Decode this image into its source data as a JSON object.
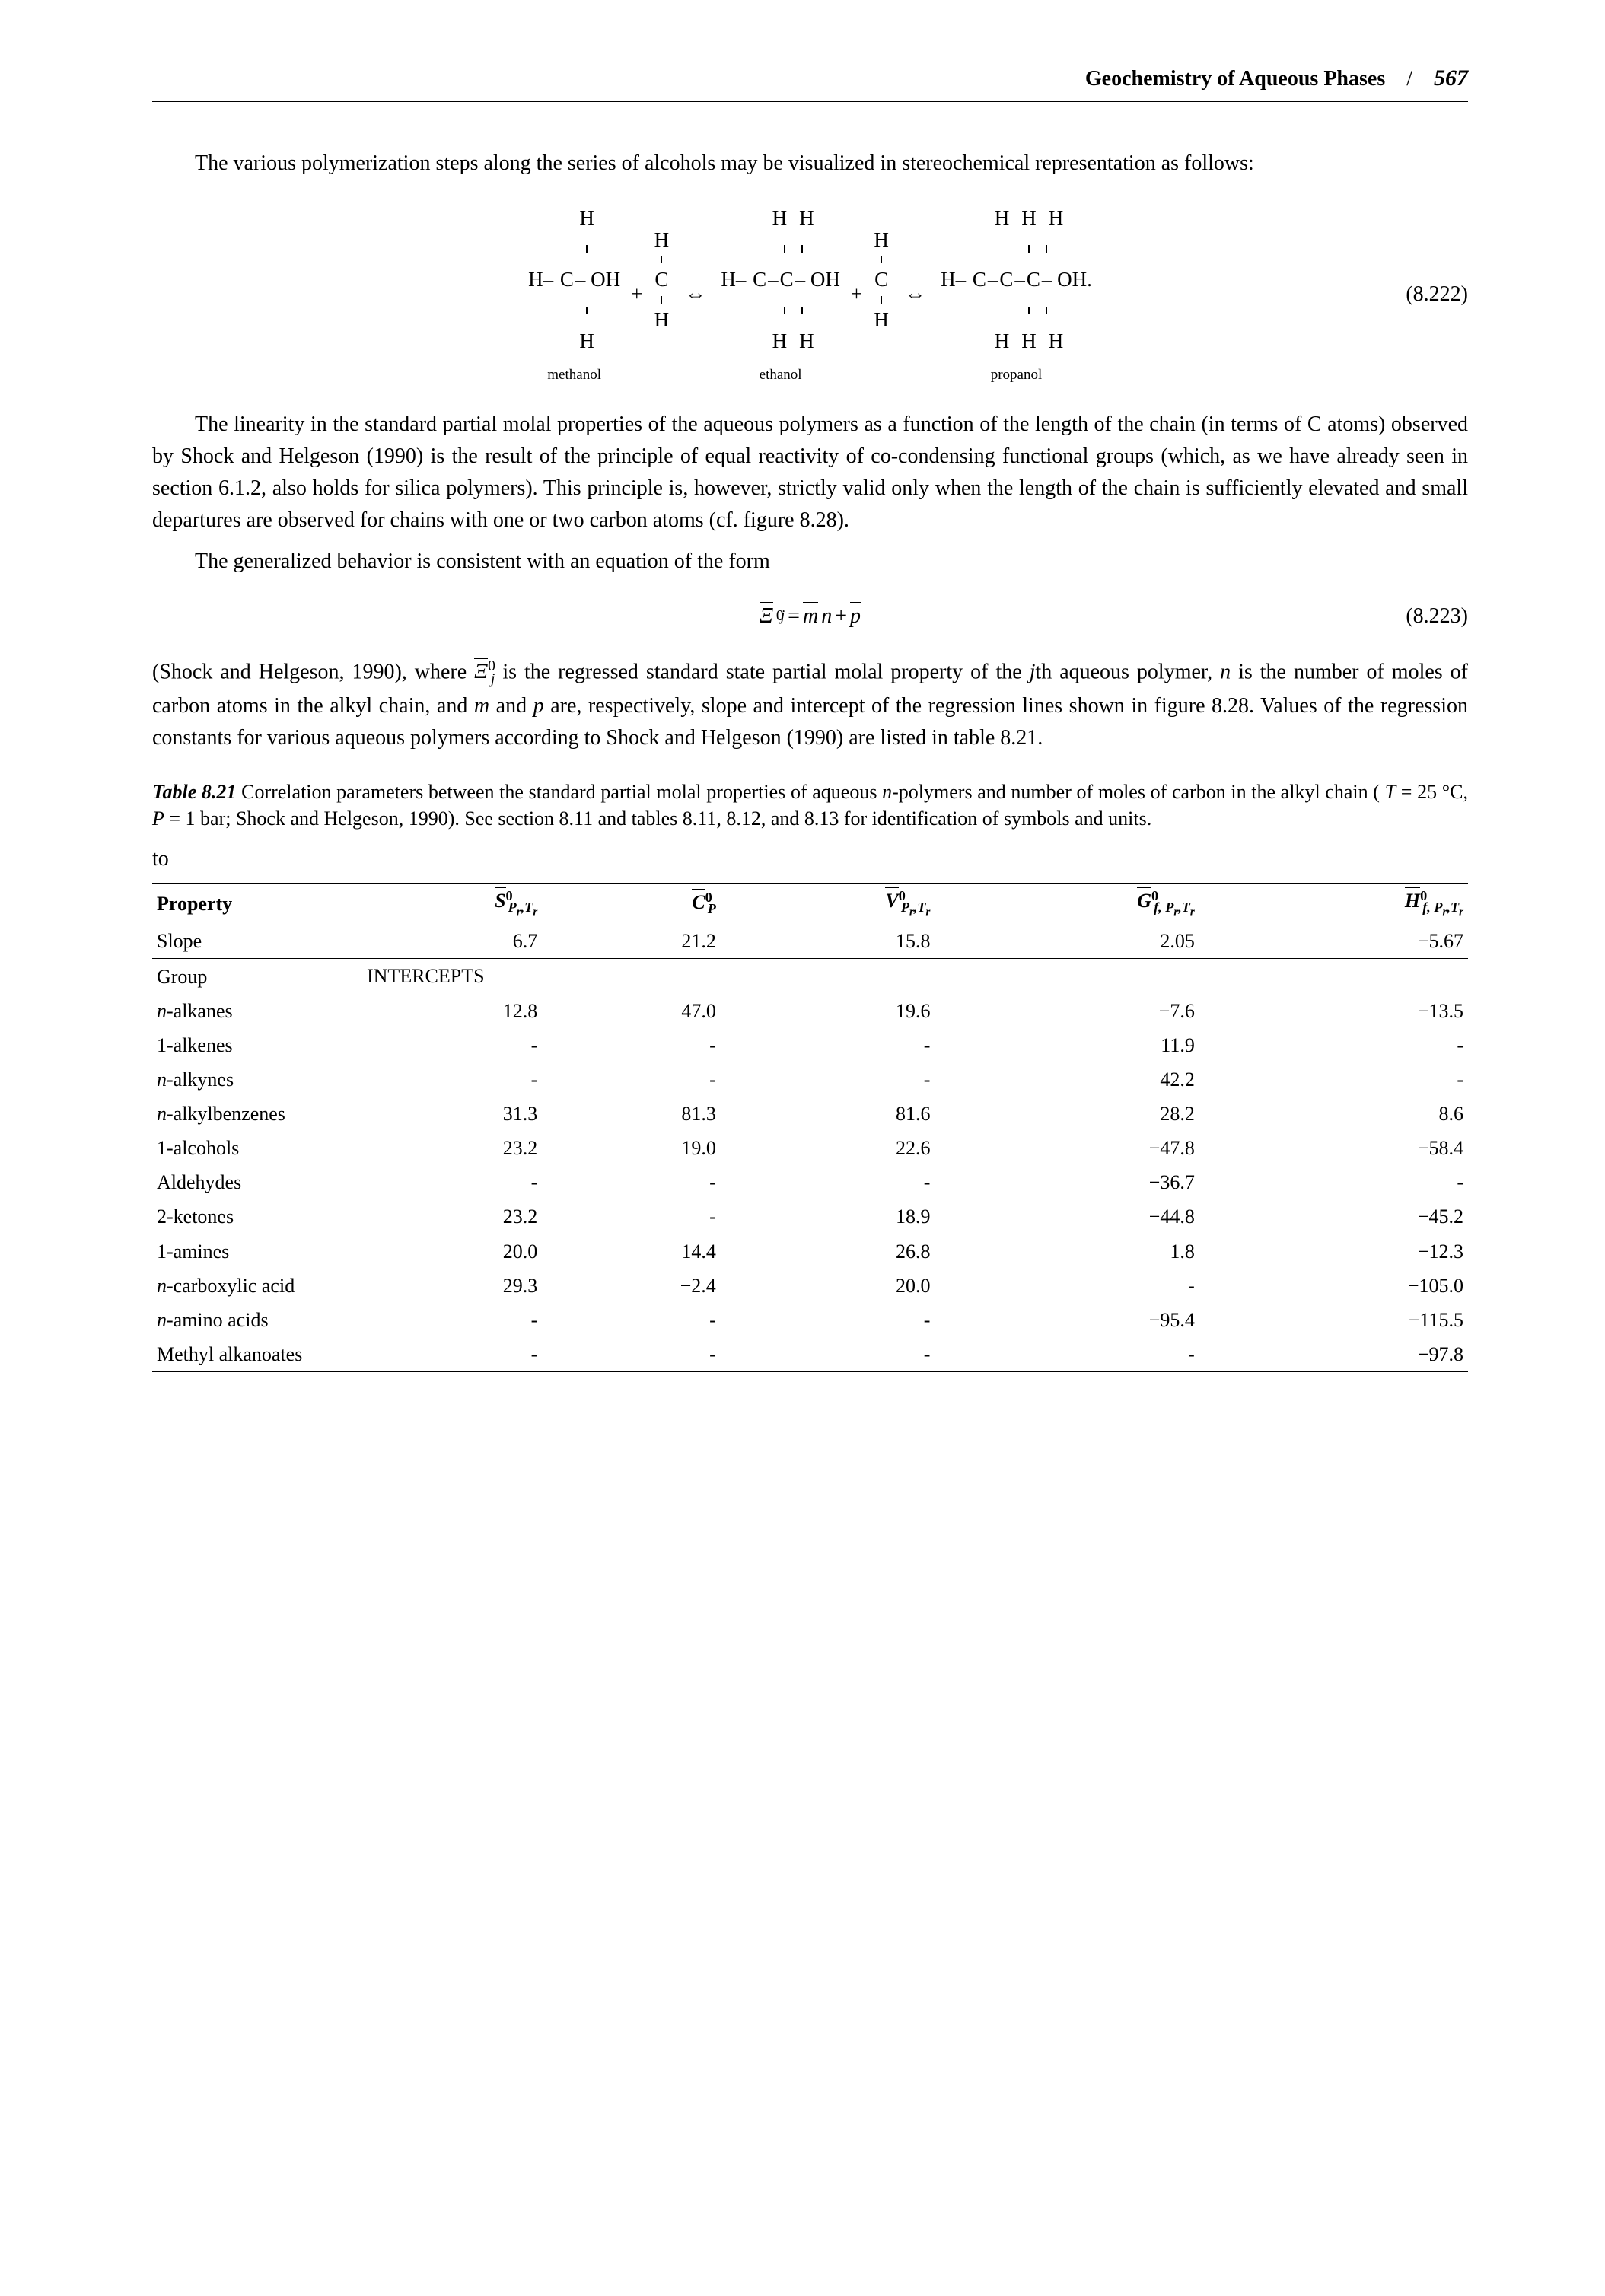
{
  "header": {
    "title": "Geochemistry of Aqueous Phases",
    "slash": "/",
    "page": "567"
  },
  "para1": "The various polymerization steps along the series of alcohols may be visualized in stereochemical representation as follows:",
  "stereo": {
    "labels": {
      "methanol": "methanol",
      "ethanol": "ethanol",
      "propanol": "propanol"
    },
    "atoms": {
      "H": "H",
      "C": "C",
      "OH": "OH"
    },
    "eq_num": "(8.222)",
    "plus": "+",
    "dash": "–",
    "arrow": "⇔",
    "dot": "."
  },
  "para2": "The linearity in the standard partial molal properties of the aqueous polymers as a function of the length of the chain (in terms of C atoms) observed by Shock and Helgeson (1990) is the result of the principle of equal reactivity of co-condensing functional groups (which, as we have already seen in section 6.1.2, also holds for silica polymers). This principle is, however, strictly valid only when the length of the chain is sufficiently elevated and small departures are observed for chains with one or two carbon atoms (cf. figure 8.28).",
  "para3": "The generalized behavior is consistent with an equation of the form",
  "eq223": {
    "lhs_sym": "Ξ",
    "lhs_sup": "0",
    "lhs_sub": "j",
    "eq": " = ",
    "m": "m",
    "n": "n",
    "plus": " + ",
    "p": "p",
    "num": "(8.223)"
  },
  "para4a": "(Shock and Helgeson, 1990), where ",
  "para4b": " is the regressed standard state partial molal property of the ",
  "para4c": "th aqueous polymer, ",
  "para4d": " is the number of moles of carbon atoms in the alkyl chain, and ",
  "para4e": " and ",
  "para4f": " are, respectively, slope and intercept of the regression lines shown in figure 8.28. Values of the regression constants for various aqueous polymers according to Shock and Helgeson (1990) are listed in table 8.21.",
  "para4_sym": {
    "Xi": "Ξ",
    "j": "j",
    "n": "n",
    "m": "m",
    "p": "p"
  },
  "caption": {
    "label": "Table 8.21",
    "text": " Correlation parameters between the standard partial molal properties of aqueous ",
    "npoly": "n",
    "text2": "-polymers and number of moles of carbon in the alkyl chain ( ",
    "cond": "T",
    "cond_eq": " = 25 °C, ",
    "cond2": "P",
    "cond2_eq": " = 1 bar; Shock and Helgeson, 1990). See section 8.11 and tables 8.11, 8.12, and 8.13 for identification of symbols and units."
  },
  "table": {
    "headers": {
      "property": "Property",
      "S": {
        "sym": "S",
        "sup": "0",
        "sub": "P",
        "sub2": ",T",
        "r": "r"
      },
      "C": {
        "sym": "C",
        "sup": "0",
        "sub": "P"
      },
      "V": {
        "sym": "V",
        "sup": "0",
        "sub": "P",
        "sub2": ",T",
        "r": "r"
      },
      "G": {
        "sym": "G",
        "sup": "0",
        "sub": "f, P",
        "sub2": ",T",
        "r": "r"
      },
      "H": {
        "sym": "H",
        "sup": "0",
        "sub": "f, P",
        "sub2": ",T",
        "r": "r"
      }
    },
    "slope_label": "Slope",
    "slope": [
      "6.7",
      "21.2",
      "15.8",
      "2.05",
      "−5.67"
    ],
    "group_label": "Group",
    "intercepts_label": "INTERCEPTS",
    "rows": [
      {
        "name_n": "n",
        "name": "-alkanes",
        "v": [
          "12.8",
          "47.0",
          "19.6",
          "−7.6",
          "−13.5"
        ]
      },
      {
        "name_n": "",
        "name": "1-alkenes",
        "v": [
          "-",
          "-",
          "-",
          "11.9",
          "-"
        ]
      },
      {
        "name_n": "n",
        "name": "-alkynes",
        "v": [
          "-",
          "-",
          "-",
          "42.2",
          "-"
        ]
      },
      {
        "name_n": "n",
        "name": "-alkylbenzenes",
        "v": [
          "31.3",
          "81.3",
          "81.6",
          "28.2",
          "8.6"
        ]
      },
      {
        "name_n": "",
        "name": "1-alcohols",
        "v": [
          "23.2",
          "19.0",
          "22.6",
          "−47.8",
          "−58.4"
        ]
      },
      {
        "name_n": "",
        "name": "Aldehydes",
        "v": [
          "-",
          "-",
          "-",
          "−36.7",
          "-"
        ]
      },
      {
        "name_n": "",
        "name": "2-ketones",
        "v": [
          "23.2",
          "-",
          "18.9",
          "−44.8",
          "−45.2"
        ]
      }
    ],
    "rows2": [
      {
        "name_n": "",
        "name": "1-amines",
        "v": [
          "20.0",
          "14.4",
          "26.8",
          "1.8",
          "−12.3"
        ]
      },
      {
        "name_n": "n",
        "name": "-carboxylic acid",
        "v": [
          "29.3",
          "−2.4",
          "20.0",
          "-",
          "−105.0"
        ]
      },
      {
        "name_n": "n",
        "name": "-amino acids",
        "v": [
          "-",
          "-",
          "-",
          "−95.4",
          "−115.5"
        ]
      },
      {
        "name_n": "",
        "name": "Methyl alkanoates",
        "v": [
          "-",
          "-",
          "-",
          "-",
          "−97.8"
        ]
      }
    ]
  }
}
